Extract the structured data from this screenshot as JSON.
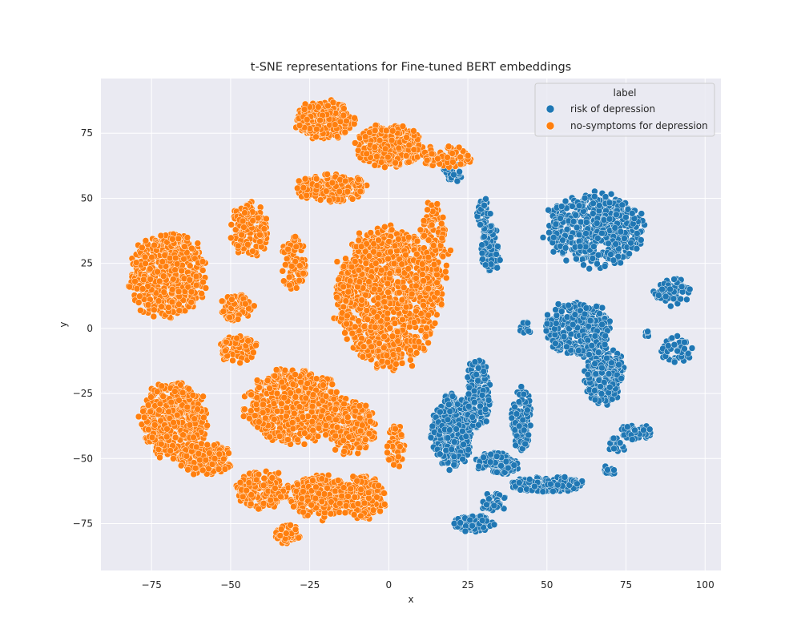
{
  "chart_data": {
    "type": "scatter",
    "title": "t-SNE representations for Fine-tuned BERT embeddings",
    "xlabel": "x",
    "ylabel": "y",
    "xlim": [
      -91,
      105
    ],
    "ylim": [
      -93,
      96
    ],
    "xticks": [
      -75,
      -50,
      -25,
      0,
      25,
      50,
      75,
      100
    ],
    "yticks": [
      -75,
      -50,
      -25,
      0,
      25,
      50,
      75
    ],
    "grid": true,
    "legend": {
      "title": "label",
      "placement": "top-right"
    },
    "series": [
      {
        "name": "risk of depression",
        "color": "#1f77b4",
        "clusters": [
          {
            "cx": 65,
            "cy": 38,
            "rx": 15,
            "ry": 14,
            "n": 520,
            "seed": 11
          },
          {
            "cx": 90,
            "cy": 14,
            "rx": 6,
            "ry": 5,
            "n": 70,
            "seed": 12
          },
          {
            "cx": 91,
            "cy": -8,
            "rx": 5,
            "ry": 5,
            "n": 55,
            "seed": 13
          },
          {
            "cx": 60,
            "cy": 0,
            "rx": 10,
            "ry": 10,
            "n": 300,
            "seed": 14
          },
          {
            "cx": 68,
            "cy": -18,
            "rx": 6,
            "ry": 11,
            "n": 220,
            "seed": 15
          },
          {
            "cx": 43,
            "cy": 0,
            "rx": 2,
            "ry": 3,
            "n": 18,
            "seed": 16
          },
          {
            "cx": 20,
            "cy": -40,
            "rx": 6,
            "ry": 14,
            "n": 340,
            "seed": 17
          },
          {
            "cx": 28,
            "cy": -25,
            "rx": 4,
            "ry": 13,
            "n": 150,
            "seed": 18
          },
          {
            "cx": 42,
            "cy": -35,
            "rx": 3,
            "ry": 12,
            "n": 120,
            "seed": 19
          },
          {
            "cx": 34,
            "cy": -52,
            "rx": 7,
            "ry": 4,
            "n": 110,
            "seed": 20
          },
          {
            "cx": 50,
            "cy": -60,
            "rx": 12,
            "ry": 3,
            "n": 150,
            "seed": 21
          },
          {
            "cx": 27,
            "cy": -75,
            "rx": 6,
            "ry": 3,
            "n": 100,
            "seed": 22
          },
          {
            "cx": 33,
            "cy": -67,
            "rx": 4,
            "ry": 4,
            "n": 40,
            "seed": 23
          },
          {
            "cx": 78,
            "cy": -40,
            "rx": 5,
            "ry": 3,
            "n": 55,
            "seed": 24
          },
          {
            "cx": 72,
            "cy": -45,
            "rx": 3,
            "ry": 3,
            "n": 20,
            "seed": 25
          },
          {
            "cx": 70,
            "cy": -54,
            "rx": 2,
            "ry": 2,
            "n": 14,
            "seed": 26
          },
          {
            "cx": 32,
            "cy": 30,
            "rx": 3,
            "ry": 10,
            "n": 130,
            "seed": 27
          },
          {
            "cx": 30,
            "cy": 44,
            "rx": 2,
            "ry": 6,
            "n": 45,
            "seed": 28
          },
          {
            "cx": 82,
            "cy": -2,
            "rx": 1.5,
            "ry": 1.5,
            "n": 8,
            "seed": 29
          },
          {
            "cx": 20,
            "cy": 60,
            "rx": 3,
            "ry": 4,
            "n": 30,
            "seed": 30
          }
        ]
      },
      {
        "name": "no-symptoms for depression",
        "color": "#ff7f0e",
        "clusters": [
          {
            "cx": -70,
            "cy": 20,
            "rx": 12,
            "ry": 16,
            "n": 520,
            "seed": 41
          },
          {
            "cx": -20,
            "cy": 80,
            "rx": 9,
            "ry": 7,
            "n": 260,
            "seed": 42
          },
          {
            "cx": 0,
            "cy": 70,
            "rx": 10,
            "ry": 8,
            "n": 300,
            "seed": 43
          },
          {
            "cx": 18,
            "cy": 66,
            "rx": 8,
            "ry": 4,
            "n": 80,
            "seed": 44
          },
          {
            "cx": -18,
            "cy": 54,
            "rx": 11,
            "ry": 5,
            "n": 200,
            "seed": 45
          },
          {
            "cx": 0,
            "cy": 12,
            "rx": 16,
            "ry": 26,
            "n": 1100,
            "seed": 46
          },
          {
            "cx": 14,
            "cy": 30,
            "rx": 5,
            "ry": 18,
            "n": 140,
            "seed": 47
          },
          {
            "cx": -44,
            "cy": 38,
            "rx": 6,
            "ry": 10,
            "n": 160,
            "seed": 48
          },
          {
            "cx": -30,
            "cy": 25,
            "rx": 4,
            "ry": 10,
            "n": 90,
            "seed": 49
          },
          {
            "cx": -48,
            "cy": 8,
            "rx": 5,
            "ry": 5,
            "n": 80,
            "seed": 50
          },
          {
            "cx": -48,
            "cy": -8,
            "rx": 6,
            "ry": 5,
            "n": 90,
            "seed": 51
          },
          {
            "cx": -68,
            "cy": -35,
            "rx": 10,
            "ry": 14,
            "n": 460,
            "seed": 52
          },
          {
            "cx": -58,
            "cy": -50,
            "rx": 8,
            "ry": 6,
            "n": 180,
            "seed": 53
          },
          {
            "cx": -30,
            "cy": -30,
            "rx": 15,
            "ry": 14,
            "n": 520,
            "seed": 54
          },
          {
            "cx": -12,
            "cy": -38,
            "rx": 8,
            "ry": 10,
            "n": 220,
            "seed": 55
          },
          {
            "cx": -40,
            "cy": -62,
            "rx": 8,
            "ry": 7,
            "n": 180,
            "seed": 56
          },
          {
            "cx": -22,
            "cy": -65,
            "rx": 9,
            "ry": 8,
            "n": 240,
            "seed": 57
          },
          {
            "cx": -8,
            "cy": -65,
            "rx": 7,
            "ry": 8,
            "n": 180,
            "seed": 58
          },
          {
            "cx": -32,
            "cy": -79,
            "rx": 4,
            "ry": 4,
            "n": 80,
            "seed": 59
          },
          {
            "cx": 2,
            "cy": -45,
            "rx": 3,
            "ry": 8,
            "n": 60,
            "seed": 60
          }
        ]
      }
    ]
  }
}
